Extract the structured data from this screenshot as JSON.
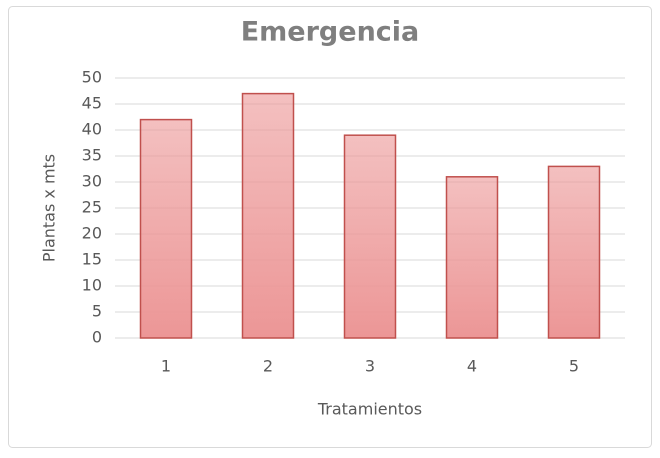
{
  "chart_data": {
    "type": "bar",
    "title": "Emergencia",
    "x_label": "Tratamientos",
    "y_label": "Plantas x mts",
    "categories": [
      "1",
      "2",
      "3",
      "4",
      "5"
    ],
    "values": [
      42,
      47,
      39,
      31,
      33
    ],
    "color": "#ec9696",
    "edgecolor": "#c0504d",
    "ylim": [
      0,
      50
    ],
    "yticks": [
      0,
      5,
      10,
      15,
      20,
      25,
      30,
      35,
      40,
      45,
      50
    ],
    "grid": true
  }
}
